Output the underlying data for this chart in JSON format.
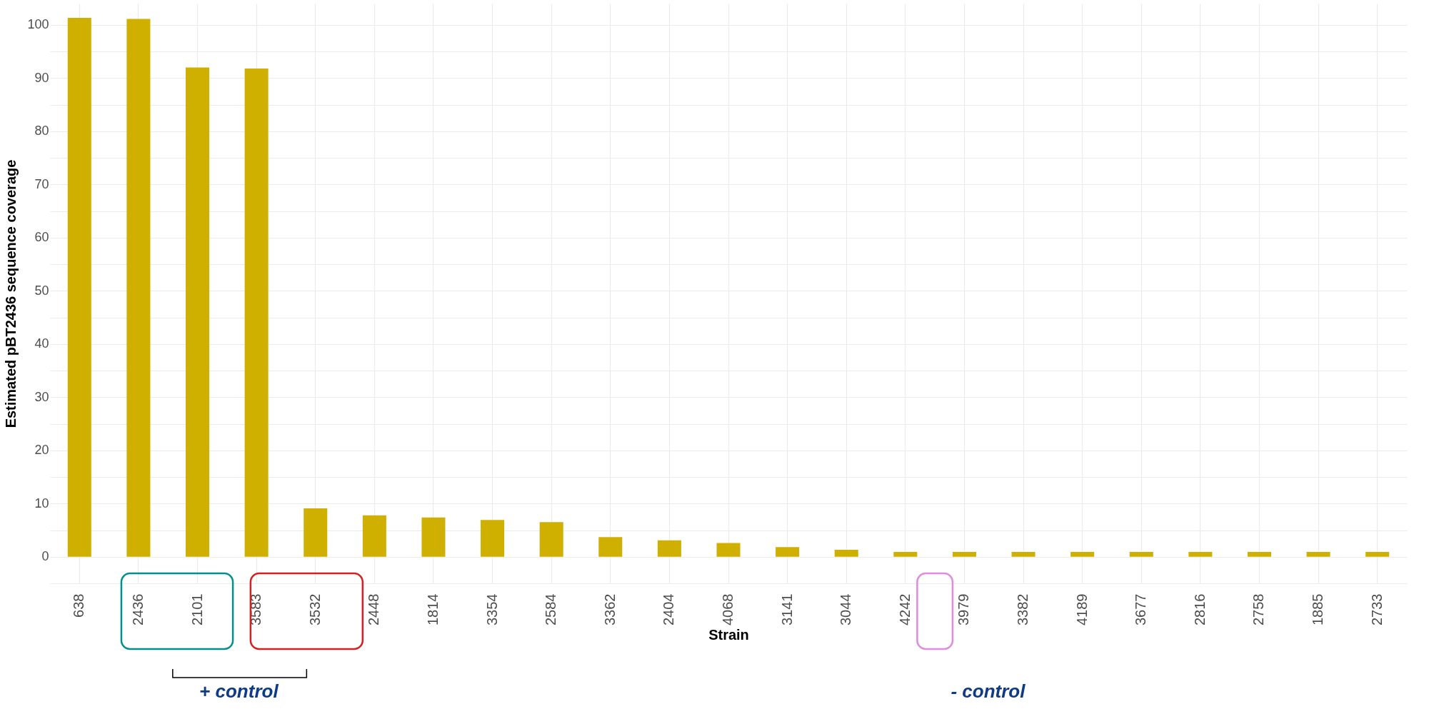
{
  "chart_data": {
    "type": "bar",
    "xlabel": "Strain",
    "ylabel": "Estimated pBT2436 sequence coverage",
    "categories": [
      "638",
      "2436",
      "2101",
      "3583",
      "3532",
      "2448",
      "1814",
      "3354",
      "2584",
      "3362",
      "2404",
      "4068",
      "3141",
      "3044",
      "4242",
      "3979",
      "3382",
      "4189",
      "3677",
      "2816",
      "2758",
      "1885",
      "2733"
    ],
    "values": [
      101.3,
      101.1,
      92.0,
      91.8,
      9.1,
      7.8,
      7.4,
      6.9,
      6.5,
      3.7,
      3.1,
      2.6,
      1.8,
      1.3,
      0.9,
      0.9,
      0.9,
      0.9,
      0.9,
      0.9,
      0.9,
      0.9,
      0.9
    ],
    "color": "#cfb000",
    "ylim": [
      -5,
      104
    ],
    "yticks": [
      0,
      10,
      20,
      30,
      40,
      50,
      60,
      70,
      80,
      90,
      100,
      {
        "value": 5,
        "label": null
      },
      {
        "value": 15,
        "label": null
      },
      {
        "value": 25,
        "label": null
      },
      {
        "value": 35,
        "label": null
      },
      {
        "value": 45,
        "label": null
      },
      {
        "value": 55,
        "label": null
      },
      {
        "value": 65,
        "label": null
      },
      {
        "value": 75,
        "label": null
      },
      {
        "value": 85,
        "label": null
      },
      {
        "value": 95,
        "label": null
      },
      {
        "value": -5,
        "label": null
      }
    ],
    "grid": true,
    "annotations": [
      "+ control",
      "- control"
    ]
  }
}
